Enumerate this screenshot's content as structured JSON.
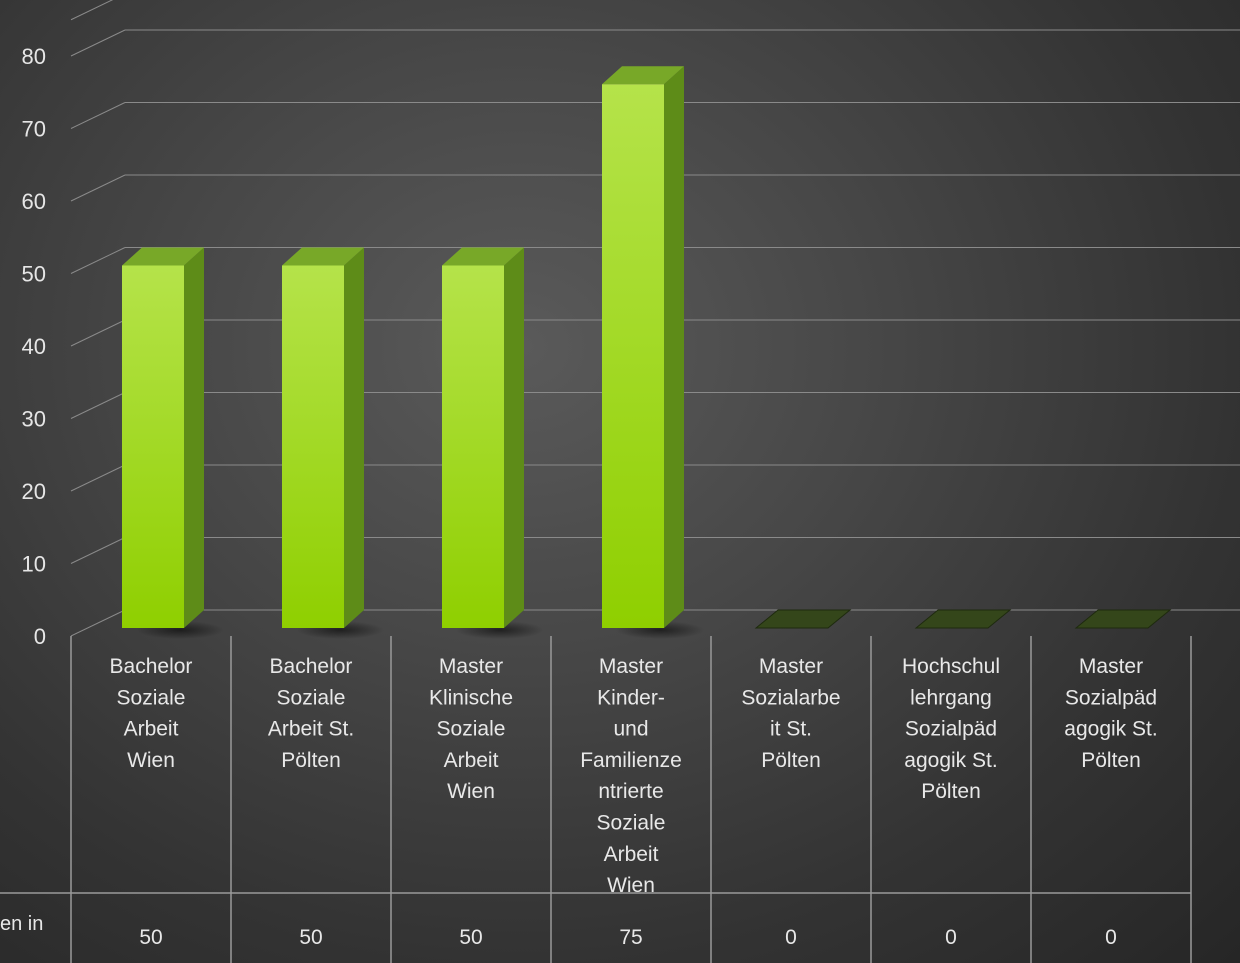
{
  "chart_data": {
    "type": "bar",
    "categories": [
      "Bachelor Soziale Arbeit Wien",
      "Bachelor Soziale Arbeit St. Pölten",
      "Master Klinische Soziale Arbeit Wien",
      "Master Kinder- und Familienzentrierte Soziale Arbeit Wien",
      "Master Sozialarbeit St. Pölten",
      "Hochschullehrgang Sozialpädagogik St. Pölten",
      "Master Sozialpädagogik St. Pölten"
    ],
    "category_lines": [
      [
        "Bachelor",
        "Soziale",
        "Arbeit",
        "Wien"
      ],
      [
        "Bachelor",
        "Soziale",
        "Arbeit St.",
        "Pölten"
      ],
      [
        "Master",
        "Klinische",
        "Soziale",
        "Arbeit",
        "Wien"
      ],
      [
        "Master",
        "Kinder-",
        "und",
        "Familienze",
        "ntrierte",
        "Soziale",
        "Arbeit",
        "Wien"
      ],
      [
        "Master",
        "Sozialarbe",
        "it St.",
        "Pölten"
      ],
      [
        "Hochschul",
        "lehrgang",
        "Sozialpäd",
        "agogik St.",
        "Pölten"
      ],
      [
        "Master",
        "Sozialpäd",
        "agogik St.",
        "Pölten"
      ]
    ],
    "values": [
      50,
      50,
      50,
      75,
      0,
      0,
      0
    ],
    "value_labels": [
      "50",
      "50",
      "50",
      "75",
      "0",
      "0",
      "0"
    ],
    "series_label": "en in",
    "yticks": [
      "0",
      "10",
      "20",
      "30",
      "40",
      "50",
      "60",
      "70",
      "80"
    ],
    "ylim": [
      0,
      80
    ],
    "grid": true,
    "title": "",
    "xlabel": "",
    "ylabel": "",
    "colors": {
      "bar_front_top": "#b5e34a",
      "bar_front_bottom": "#8fcf00",
      "bar_side": "#5e8c18",
      "bar_top": "#78a828",
      "empty_marker": "#34461a",
      "grid": "#8a8a8a",
      "table_line": "#9a9a9a"
    }
  }
}
